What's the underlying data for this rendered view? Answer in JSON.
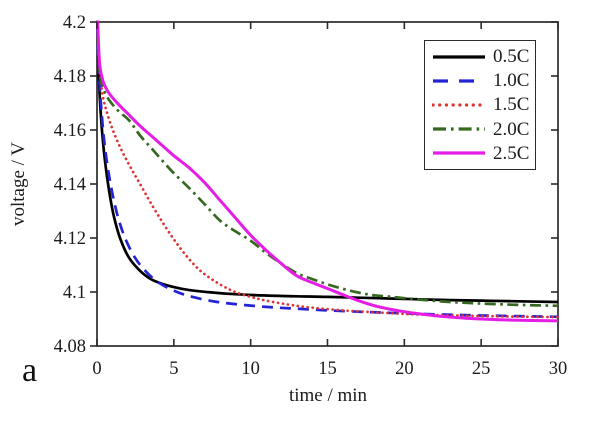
{
  "figure": {
    "panel_label": "a",
    "background": "#ffffff",
    "text_color": "#1c1c1c"
  },
  "chart_data": {
    "type": "line",
    "title": "",
    "xlabel": "time / min",
    "ylabel": "voltage / V",
    "xlim": [
      0,
      30
    ],
    "ylim": [
      4.08,
      4.2
    ],
    "xticks": [
      "0",
      "5",
      "10",
      "15",
      "20",
      "25",
      "30"
    ],
    "yticks": [
      "4.2",
      "4.18",
      "4.16",
      "4.14",
      "4.12",
      "4.1",
      "4.08"
    ],
    "grid": false,
    "legend_position": "top-right",
    "axis_color": "#2b2b2b",
    "series": [
      {
        "name": "0.5C",
        "color": "#000000",
        "style": "solid",
        "points": [
          [
            0,
            4.205
          ],
          [
            0.05,
            4.192
          ],
          [
            0.12,
            4.18
          ],
          [
            0.2,
            4.17
          ],
          [
            0.35,
            4.158
          ],
          [
            0.55,
            4.147
          ],
          [
            0.8,
            4.137
          ],
          [
            1.1,
            4.128
          ],
          [
            1.5,
            4.12
          ],
          [
            2,
            4.1135
          ],
          [
            2.6,
            4.109
          ],
          [
            3.3,
            4.1055
          ],
          [
            4,
            4.1035
          ],
          [
            5,
            4.1018
          ],
          [
            6,
            4.1007
          ],
          [
            7.5,
            4.0998
          ],
          [
            9,
            4.0992
          ],
          [
            11,
            4.0987
          ],
          [
            13,
            4.0984
          ],
          [
            15,
            4.0982
          ],
          [
            17,
            4.0979
          ],
          [
            19,
            4.0976
          ],
          [
            21,
            4.0973
          ],
          [
            23,
            4.097
          ],
          [
            25,
            4.0968
          ],
          [
            27,
            4.0966
          ],
          [
            30,
            4.0963
          ]
        ]
      },
      {
        "name": "1.0C",
        "color": "#2424d4",
        "style": "dashed",
        "points": [
          [
            0,
            4.205
          ],
          [
            0.06,
            4.19
          ],
          [
            0.15,
            4.179
          ],
          [
            0.28,
            4.168
          ],
          [
            0.45,
            4.157
          ],
          [
            0.7,
            4.146
          ],
          [
            1,
            4.1365
          ],
          [
            1.4,
            4.127
          ],
          [
            1.9,
            4.119
          ],
          [
            2.5,
            4.1125
          ],
          [
            3.2,
            4.1075
          ],
          [
            4,
            4.1035
          ],
          [
            5,
            4.1005
          ],
          [
            6,
            4.0985
          ],
          [
            7.5,
            4.0966
          ],
          [
            9,
            4.0955
          ],
          [
            11,
            4.0945
          ],
          [
            13,
            4.0938
          ],
          [
            15,
            4.0932
          ],
          [
            17,
            4.0927
          ],
          [
            19,
            4.0923
          ],
          [
            21,
            4.0919
          ],
          [
            23,
            4.0916
          ],
          [
            25,
            4.0913
          ],
          [
            27,
            4.0911
          ],
          [
            30,
            4.0908
          ]
        ]
      },
      {
        "name": "1.5C",
        "color": "#dd3333",
        "style": "dotted",
        "points": [
          [
            0,
            4.205
          ],
          [
            0.08,
            4.19
          ],
          [
            0.2,
            4.18
          ],
          [
            0.4,
            4.172
          ],
          [
            0.7,
            4.1655
          ],
          [
            1.1,
            4.159
          ],
          [
            1.6,
            4.1525
          ],
          [
            2.2,
            4.146
          ],
          [
            2.9,
            4.139
          ],
          [
            3.6,
            4.132
          ],
          [
            4.3,
            4.1255
          ],
          [
            5,
            4.1195
          ],
          [
            5.8,
            4.1135
          ],
          [
            6.6,
            4.1085
          ],
          [
            7.4,
            4.105
          ],
          [
            8.2,
            4.1022
          ],
          [
            9,
            4.1
          ],
          [
            10,
            4.0982
          ],
          [
            11,
            4.0968
          ],
          [
            12.5,
            4.0953
          ],
          [
            14,
            4.0942
          ],
          [
            16,
            4.0932
          ],
          [
            18,
            4.0925
          ],
          [
            20,
            4.0919
          ],
          [
            22,
            4.0915
          ],
          [
            25,
            4.0911
          ],
          [
            27,
            4.0909
          ],
          [
            30,
            4.0907
          ]
        ]
      },
      {
        "name": "2.0C",
        "color": "#35691f",
        "style": "dashdot",
        "points": [
          [
            0,
            4.205
          ],
          [
            0.07,
            4.192
          ],
          [
            0.18,
            4.181
          ],
          [
            0.4,
            4.1755
          ],
          [
            0.8,
            4.171
          ],
          [
            1.4,
            4.167
          ],
          [
            2.1,
            4.1635
          ],
          [
            2.8,
            4.158
          ],
          [
            3.5,
            4.1535
          ],
          [
            4.2,
            4.149
          ],
          [
            5,
            4.144
          ],
          [
            6,
            4.1385
          ],
          [
            7,
            4.1325
          ],
          [
            8,
            4.1265
          ],
          [
            9,
            4.1225
          ],
          [
            10,
            4.119
          ],
          [
            11,
            4.1145
          ],
          [
            12,
            4.1105
          ],
          [
            13,
            4.107
          ],
          [
            14,
            4.1048
          ],
          [
            15,
            4.1028
          ],
          [
            16,
            4.1012
          ],
          [
            17,
            4.0998
          ],
          [
            18,
            4.0988
          ],
          [
            19,
            4.0983
          ],
          [
            20,
            4.0977
          ],
          [
            21,
            4.0972
          ],
          [
            22,
            4.0967
          ],
          [
            23,
            4.0963
          ],
          [
            24,
            4.096
          ],
          [
            25,
            4.0957
          ],
          [
            27,
            4.0953
          ],
          [
            30,
            4.0949
          ]
        ]
      },
      {
        "name": "2.5C",
        "color": "#e51ee5",
        "style": "solid",
        "points": [
          [
            0,
            4.21
          ],
          [
            0.07,
            4.196
          ],
          [
            0.18,
            4.184
          ],
          [
            0.4,
            4.178
          ],
          [
            0.8,
            4.1735
          ],
          [
            1.4,
            4.1695
          ],
          [
            2.1,
            4.1655
          ],
          [
            2.8,
            4.1615
          ],
          [
            3.5,
            4.158
          ],
          [
            4.2,
            4.1545
          ],
          [
            5,
            4.1505
          ],
          [
            6,
            4.146
          ],
          [
            7,
            4.1405
          ],
          [
            8,
            4.134
          ],
          [
            9,
            4.1275
          ],
          [
            10,
            4.121
          ],
          [
            11,
            4.1155
          ],
          [
            12,
            4.1105
          ],
          [
            13,
            4.106
          ],
          [
            14,
            4.1035
          ],
          [
            15,
            4.1013
          ],
          [
            16,
            4.099
          ],
          [
            17,
            4.0968
          ],
          [
            18,
            4.095
          ],
          [
            19,
            4.0937
          ],
          [
            20,
            4.0927
          ],
          [
            21,
            4.0919
          ],
          [
            22,
            4.0912
          ],
          [
            23,
            4.0907
          ],
          [
            24,
            4.0903
          ],
          [
            25,
            4.09
          ],
          [
            27,
            4.0896
          ],
          [
            30,
            4.0893
          ]
        ]
      }
    ]
  }
}
